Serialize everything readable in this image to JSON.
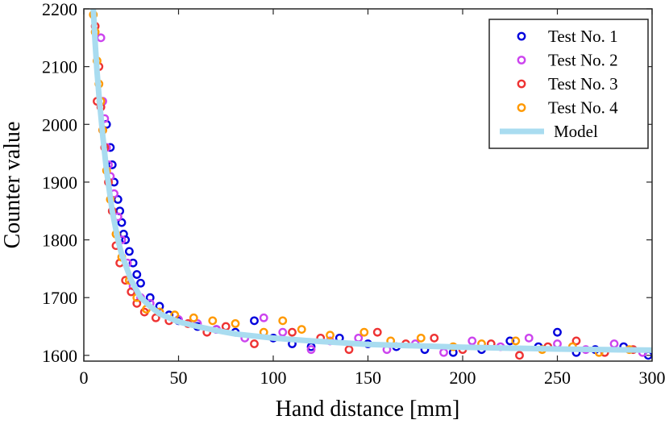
{
  "chart_data": {
    "type": "scatter",
    "title": "",
    "xlabel": "Hand distance [mm]",
    "ylabel": "Counter value",
    "xlim": [
      0,
      300
    ],
    "ylim": [
      1590,
      2200
    ],
    "xticks": [
      0,
      50,
      100,
      150,
      200,
      250,
      300
    ],
    "yticks": [
      1600,
      1700,
      1800,
      1900,
      2000,
      2100,
      2200
    ],
    "grid": false,
    "legend_position": "top-right",
    "model": {
      "name": "Model",
      "color": "#a9dcf0",
      "x": [
        5,
        6,
        7,
        8,
        10,
        12,
        15,
        18,
        20,
        25,
        30,
        35,
        40,
        50,
        60,
        70,
        80,
        100,
        120,
        150,
        200,
        250,
        300
      ],
      "y": [
        2200,
        2140,
        2090,
        2050,
        1980,
        1920,
        1850,
        1800,
        1775,
        1730,
        1700,
        1685,
        1672,
        1658,
        1650,
        1643,
        1637,
        1630,
        1625,
        1619,
        1614,
        1611,
        1609
      ]
    },
    "series": [
      {
        "name": "Test No. 1",
        "color": "#0000dd",
        "x": [
          12,
          14,
          15,
          16,
          18,
          19,
          20,
          21,
          22,
          24,
          26,
          28,
          30,
          35,
          40,
          45,
          50,
          60,
          70,
          80,
          90,
          100,
          110,
          120,
          135,
          150,
          165,
          180,
          195,
          210,
          225,
          240,
          250,
          260,
          270,
          285,
          298
        ],
        "y": [
          2000,
          1960,
          1930,
          1900,
          1870,
          1850,
          1830,
          1810,
          1800,
          1780,
          1760,
          1740,
          1725,
          1700,
          1685,
          1670,
          1660,
          1650,
          1645,
          1640,
          1660,
          1630,
          1620,
          1615,
          1630,
          1620,
          1615,
          1610,
          1605,
          1610,
          1625,
          1615,
          1640,
          1605,
          1610,
          1615,
          1600
        ]
      },
      {
        "name": "Test No. 2",
        "color": "#cc44ee",
        "x": [
          9,
          10,
          11,
          12,
          13,
          14,
          16,
          18,
          20,
          23,
          26,
          30,
          35,
          40,
          50,
          60,
          70,
          85,
          95,
          105,
          120,
          130,
          145,
          160,
          175,
          190,
          205,
          220,
          235,
          250,
          265,
          280,
          295
        ],
        "y": [
          2150,
          2040,
          2010,
          1960,
          1930,
          1910,
          1880,
          1840,
          1800,
          1760,
          1720,
          1700,
          1690,
          1675,
          1662,
          1655,
          1645,
          1630,
          1665,
          1640,
          1610,
          1625,
          1630,
          1610,
          1620,
          1605,
          1625,
          1615,
          1630,
          1620,
          1610,
          1620,
          1605
        ]
      },
      {
        "name": "Test No. 3",
        "color": "#ee3333",
        "x": [
          6,
          7,
          8,
          9,
          10,
          11,
          13,
          15,
          17,
          19,
          22,
          25,
          28,
          32,
          38,
          45,
          55,
          65,
          75,
          90,
          110,
          125,
          140,
          155,
          170,
          185,
          200,
          215,
          230,
          245,
          260,
          275,
          290
        ],
        "y": [
          2170,
          2040,
          2100,
          2030,
          1990,
          1960,
          1900,
          1850,
          1790,
          1760,
          1730,
          1710,
          1690,
          1675,
          1665,
          1660,
          1655,
          1640,
          1650,
          1620,
          1640,
          1630,
          1610,
          1640,
          1620,
          1630,
          1610,
          1620,
          1600,
          1615,
          1625,
          1605,
          1610
        ]
      },
      {
        "name": "Test No. 4",
        "color": "#ff9900",
        "x": [
          5,
          6,
          7,
          8,
          9,
          10,
          12,
          14,
          17,
          20,
          24,
          28,
          33,
          40,
          48,
          58,
          68,
          80,
          95,
          105,
          115,
          130,
          148,
          162,
          178,
          195,
          210,
          228,
          242,
          258,
          272,
          288
        ],
        "y": [
          2190,
          2160,
          2110,
          2070,
          2040,
          1990,
          1920,
          1870,
          1810,
          1770,
          1730,
          1700,
          1680,
          1675,
          1670,
          1665,
          1660,
          1655,
          1640,
          1660,
          1645,
          1635,
          1640,
          1625,
          1630,
          1615,
          1620,
          1625,
          1610,
          1615,
          1605,
          1610
        ]
      }
    ]
  }
}
